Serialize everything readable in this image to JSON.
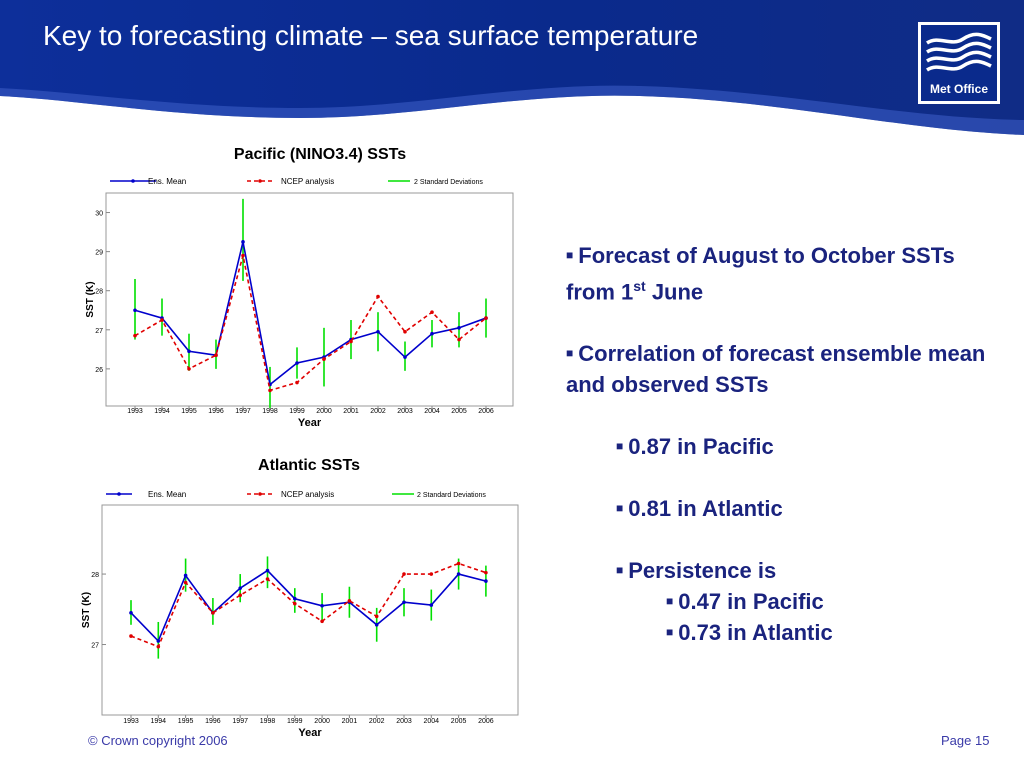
{
  "slide": {
    "title": "Key to forecasting climate – sea surface temperature",
    "logo_text": "Met Office",
    "footer_left": "© Crown copyright 2006",
    "footer_right": "Page 15",
    "colors": {
      "header_blue": "#0a2a8c",
      "text_blue": "#1a237e",
      "ens_mean": "#0000cc",
      "ncep": "#e00000",
      "std_dev": "#00e000"
    }
  },
  "bullets": {
    "b1_pre": "Forecast of August to October SSTs from 1",
    "b1_sup": "st",
    "b1_post": " June",
    "b2": "Correlation of forecast ensemble mean and observed SSTs",
    "b3": "0.87 in Pacific",
    "b4": "0.81 in Atlantic",
    "b5": "Persistence is",
    "b6": "0.47 in Pacific",
    "b7": "0.73 in Atlantic"
  },
  "chart_data": [
    {
      "type": "line",
      "title": "Pacific (NINO3.4) SSTs",
      "xlabel": "Year",
      "ylabel": "SST (K)",
      "x": [
        "1993",
        "1994",
        "1995",
        "1996",
        "1997",
        "1998",
        "1999",
        "2000",
        "2001",
        "2002",
        "2003",
        "2004",
        "2005",
        "2006"
      ],
      "yticks": [
        26,
        27,
        28,
        29,
        30
      ],
      "ylim": [
        25.05,
        30.5
      ],
      "series": [
        {
          "name": "Ens. Mean",
          "color": "#0000cc",
          "style": "solid",
          "values": [
            27.5,
            27.3,
            26.45,
            26.35,
            29.25,
            25.6,
            26.15,
            26.3,
            26.75,
            26.95,
            26.3,
            26.9,
            27.05,
            27.3
          ]
        },
        {
          "name": "NCEP analysis",
          "color": "#e00000",
          "style": "dashed",
          "values": [
            26.85,
            27.25,
            26.0,
            26.35,
            28.9,
            25.45,
            25.65,
            26.25,
            26.7,
            27.85,
            26.95,
            27.45,
            26.75,
            27.3
          ]
        }
      ],
      "std_dev": {
        "name": "2 Standard Deviations",
        "color": "#00e000",
        "low": [
          26.75,
          26.85,
          25.95,
          26.0,
          28.25,
          25.0,
          25.75,
          25.55,
          26.25,
          26.45,
          25.95,
          26.55,
          26.55,
          26.8
        ],
        "high": [
          28.3,
          27.8,
          26.9,
          26.75,
          30.35,
          26.05,
          26.55,
          27.05,
          27.25,
          27.45,
          26.7,
          27.25,
          27.45,
          27.8
        ]
      },
      "legend_position": "top",
      "grid": false
    },
    {
      "type": "line",
      "title": "Atlantic SSTs",
      "xlabel": "Year",
      "ylabel": "SST (K)",
      "x": [
        "1993",
        "1994",
        "1995",
        "1996",
        "1997",
        "1998",
        "1999",
        "2000",
        "2001",
        "2002",
        "2003",
        "2004",
        "2005",
        "2006"
      ],
      "yticks": [
        27,
        28
      ],
      "ylim": [
        26.0,
        28.98
      ],
      "series": [
        {
          "name": "Ens. Mean",
          "color": "#0000cc",
          "style": "solid",
          "values": [
            27.45,
            27.05,
            27.98,
            27.45,
            27.8,
            28.05,
            27.65,
            27.55,
            27.6,
            27.28,
            27.6,
            27.56,
            28.0,
            27.9
          ]
        },
        {
          "name": "NCEP analysis",
          "color": "#e00000",
          "style": "dashed",
          "values": [
            27.12,
            26.97,
            27.88,
            27.45,
            27.7,
            27.93,
            27.58,
            27.33,
            27.62,
            27.4,
            28.0,
            28.0,
            28.15,
            28.02
          ]
        }
      ],
      "std_dev": {
        "name": "2 Standard Deviations",
        "color": "#00e000",
        "low": [
          27.28,
          26.8,
          27.75,
          27.28,
          27.6,
          27.8,
          27.45,
          27.32,
          27.38,
          27.04,
          27.4,
          27.34,
          27.78,
          27.68
        ],
        "high": [
          27.63,
          27.32,
          28.22,
          27.66,
          28.0,
          28.25,
          27.8,
          27.73,
          27.82,
          27.52,
          27.8,
          27.78,
          28.22,
          28.12
        ]
      },
      "legend_position": "top",
      "grid": false
    }
  ]
}
